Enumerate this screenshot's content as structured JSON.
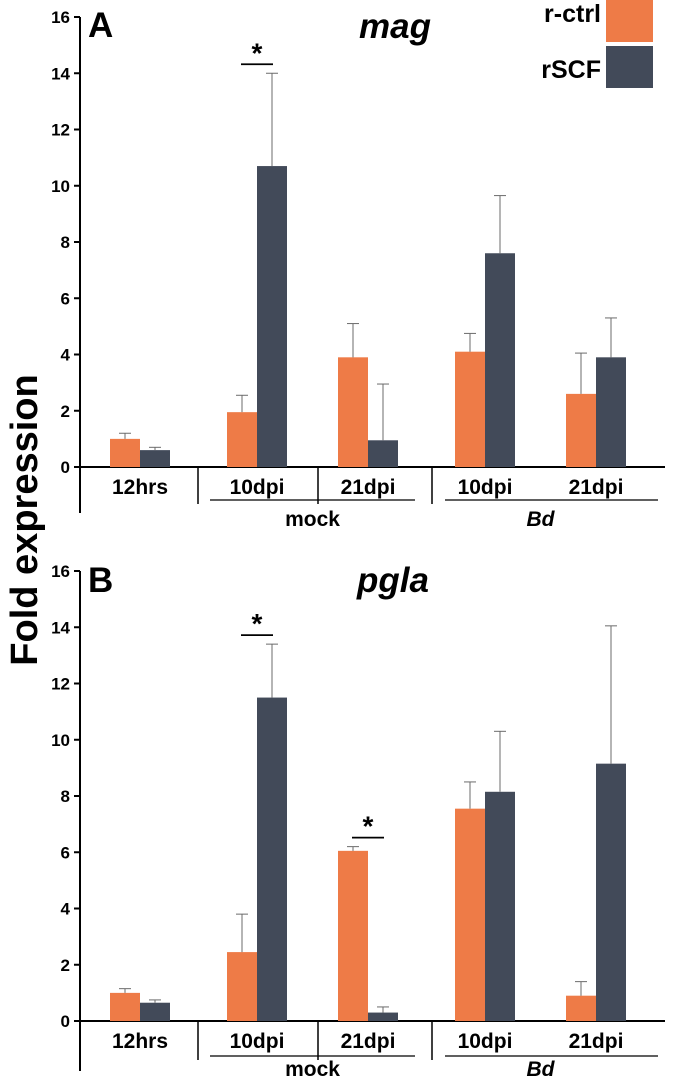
{
  "ylabel": "Fold expression",
  "legend": [
    {
      "label": "r-ctrl",
      "color": "#EE7B47"
    },
    {
      "label": "rSCF",
      "color": "#424A59"
    }
  ],
  "categories": [
    "12hrs",
    "10dpi",
    "21dpi",
    "10dpi",
    "21dpi"
  ],
  "groups": [
    {
      "label": "mock",
      "italic": false,
      "categories": [
        1,
        2
      ]
    },
    {
      "label": "Bd",
      "italic": true,
      "categories": [
        3,
        4
      ]
    }
  ],
  "chart_data": [
    {
      "type": "bar",
      "panel_label": "A",
      "title": "mag",
      "ylim": [
        0,
        16
      ],
      "yticks": [
        0,
        2,
        4,
        6,
        8,
        10,
        12,
        14,
        16
      ],
      "categories": [
        "12hrs",
        "10dpi",
        "21dpi",
        "10dpi",
        "21dpi"
      ],
      "series": [
        {
          "name": "r-ctrl",
          "color": "#EE7B47",
          "values": [
            1.0,
            1.95,
            3.9,
            4.1,
            2.6
          ],
          "errors": [
            0.2,
            0.6,
            1.2,
            0.65,
            1.45
          ]
        },
        {
          "name": "rSCF",
          "color": "#424A59",
          "values": [
            0.6,
            10.7,
            0.95,
            7.6,
            3.9
          ],
          "errors": [
            0.1,
            3.3,
            2.0,
            2.05,
            1.4
          ]
        }
      ],
      "significance": [
        {
          "category": 1,
          "label": "*"
        }
      ]
    },
    {
      "type": "bar",
      "panel_label": "B",
      "title": "pgla",
      "ylim": [
        0,
        16
      ],
      "yticks": [
        0,
        2,
        4,
        6,
        8,
        10,
        12,
        14,
        16
      ],
      "categories": [
        "12hrs",
        "10dpi",
        "21dpi",
        "10dpi",
        "21dpi"
      ],
      "series": [
        {
          "name": "r-ctrl",
          "color": "#EE7B47",
          "values": [
            1.0,
            2.45,
            6.05,
            7.55,
            0.9
          ],
          "errors": [
            0.15,
            1.35,
            0.15,
            0.95,
            0.5
          ]
        },
        {
          "name": "rSCF",
          "color": "#424A59",
          "values": [
            0.65,
            11.5,
            0.3,
            8.15,
            9.15
          ],
          "errors": [
            0.1,
            1.9,
            0.2,
            2.15,
            4.9
          ]
        }
      ],
      "significance": [
        {
          "category": 1,
          "label": "*"
        },
        {
          "category": 2,
          "label": "*"
        }
      ]
    }
  ]
}
